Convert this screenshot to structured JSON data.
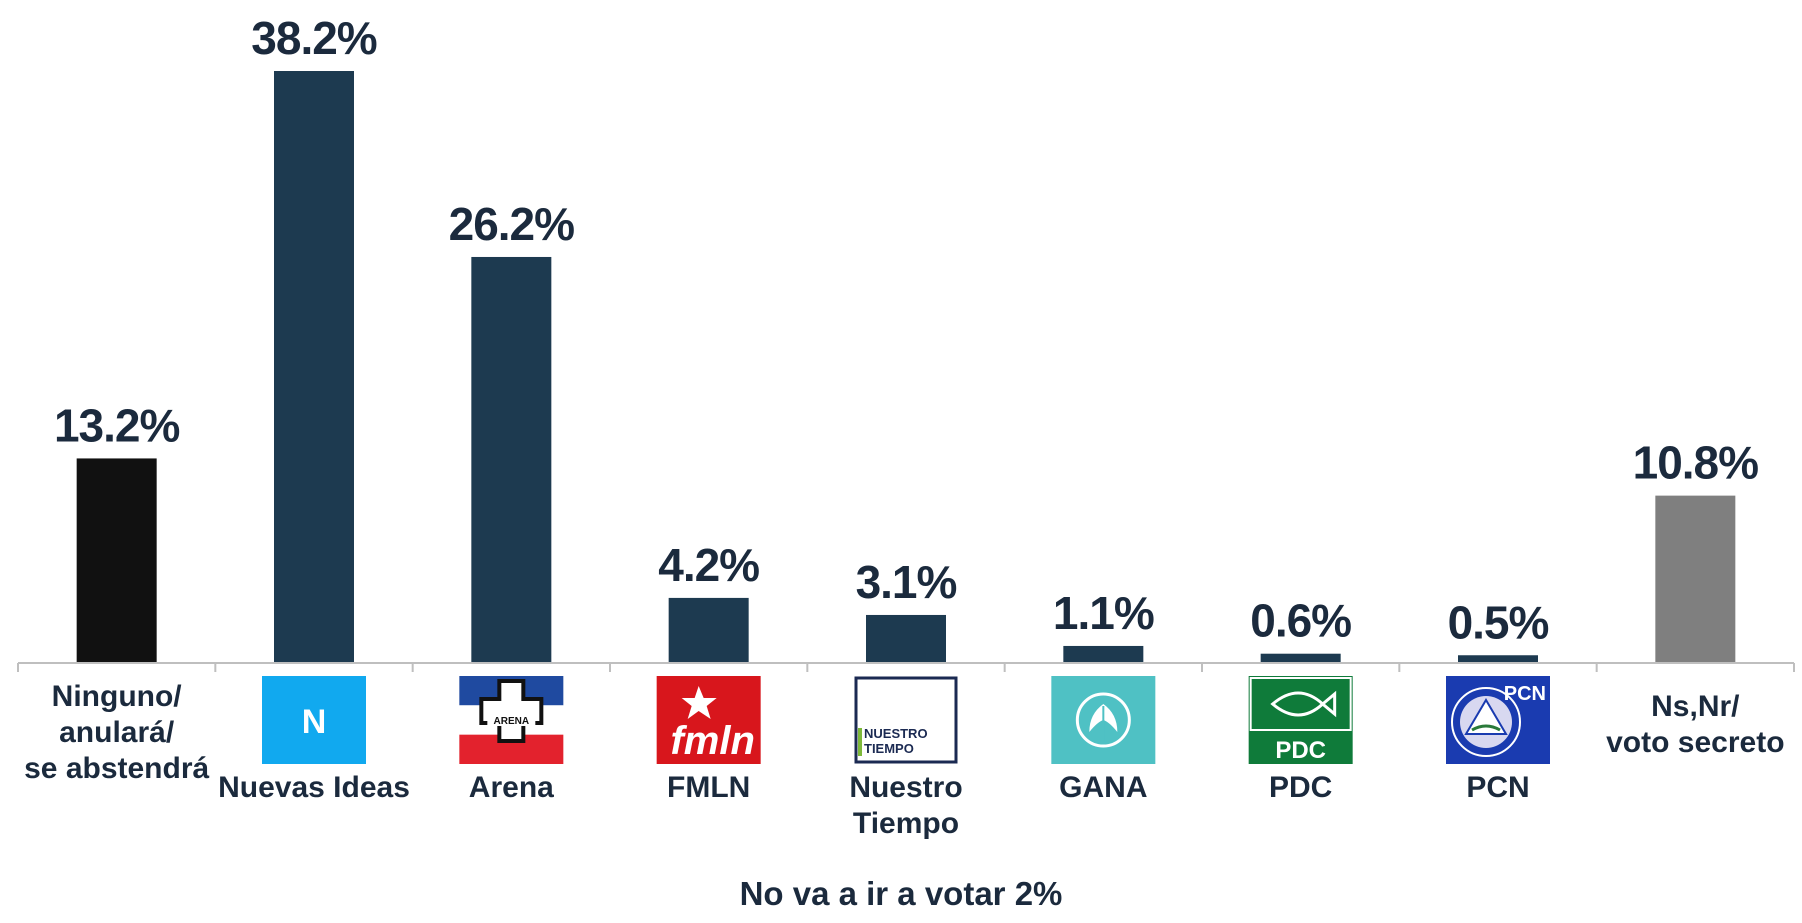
{
  "chart_data": {
    "type": "bar",
    "categories": [
      [
        "Ninguno/",
        "anulará/",
        "se abstendrá"
      ],
      [
        "Nuevas Ideas"
      ],
      [
        "Arena"
      ],
      [
        "FMLN"
      ],
      [
        "Nuestro",
        "Tiempo"
      ],
      [
        "GANA"
      ],
      [
        "PDC"
      ],
      [
        "PCN"
      ],
      [
        "Ns,Nr/",
        "voto secreto"
      ]
    ],
    "values": [
      13.2,
      38.2,
      26.2,
      4.2,
      3.1,
      1.1,
      0.6,
      0.5,
      10.8
    ],
    "value_labels": [
      "13.2%",
      "38.2%",
      "26.2%",
      "4.2%",
      "3.1%",
      "1.1%",
      "0.6%",
      "0.5%",
      "10.8%"
    ],
    "bar_colors": [
      "#111111",
      "#1d3a50",
      "#1d3a50",
      "#1d3a50",
      "#1d3a50",
      "#1d3a50",
      "#1d3a50",
      "#1d3a50",
      "#7f7f7f"
    ],
    "logos": [
      null,
      "nuevas-ideas",
      "arena",
      "fmln",
      "nuestro-tiempo",
      "gana",
      "pdc",
      "pcn",
      null
    ],
    "logo_text": {
      "nuevas-ideas": "N",
      "arena": "ARENA",
      "fmln": "fmln",
      "nuestro-tiempo": [
        "NUESTRO",
        "TIEMPO"
      ],
      "pdc": "PDC",
      "pcn": "PCN"
    },
    "footnote": "No va a ir a votar 2%",
    "ylim": [
      0,
      40
    ],
    "grid": false,
    "legend": "none"
  }
}
